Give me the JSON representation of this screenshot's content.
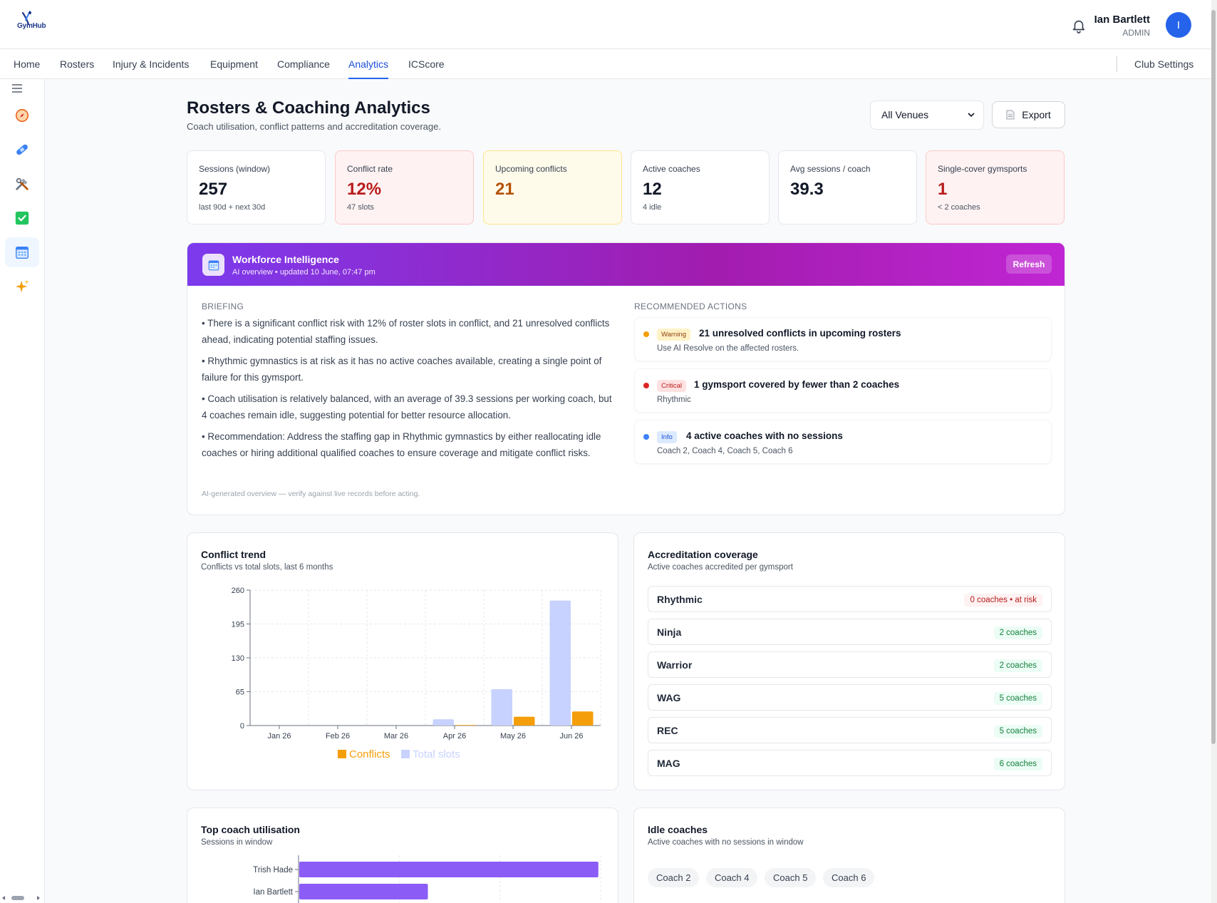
{
  "app": {
    "logo_text": "GymHub"
  },
  "user": {
    "name": "Ian Bartlett",
    "role": "ADMIN",
    "initial": "I"
  },
  "nav": {
    "items": [
      {
        "label": "Home"
      },
      {
        "label": "Rosters"
      },
      {
        "label": "Injury & Incidents"
      },
      {
        "label": "Equipment"
      },
      {
        "label": "Compliance"
      },
      {
        "label": "Analytics",
        "active": true
      },
      {
        "label": "ICScore"
      }
    ],
    "settings_label": "Club Settings"
  },
  "sidebar_icons": [
    "menu-icon",
    "compass-icon",
    "bandage-icon",
    "tools-icon",
    "checkbox-icon",
    "calendar-icon",
    "sparkle-icon"
  ],
  "page": {
    "title": "Rosters & Coaching Analytics",
    "subtitle": "Coach utilisation, conflict patterns and accreditation coverage.",
    "venue_selected": "All Venues",
    "export_label": "Export"
  },
  "kpis": [
    {
      "label": "Sessions (window)",
      "value": "257",
      "note": "last 90d + next 30d",
      "tone": "neutral"
    },
    {
      "label": "Conflict rate",
      "value": "12%",
      "note": "47 slots",
      "tone": "red"
    },
    {
      "label": "Upcoming conflicts",
      "value": "21",
      "note": "",
      "tone": "yellow"
    },
    {
      "label": "Active coaches",
      "value": "12",
      "note": "4 idle",
      "tone": "neutral"
    },
    {
      "label": "Avg sessions / coach",
      "value": "39.3",
      "note": "",
      "tone": "neutral"
    },
    {
      "label": "Single-cover gymsports",
      "value": "1",
      "note": "< 2 coaches",
      "tone": "red"
    }
  ],
  "ai": {
    "title": "Workforce Intelligence",
    "subtitle": "AI overview • updated 10 June, 07:47 pm",
    "refresh_label": "Refresh",
    "briefing_label": "BRIEFING",
    "briefing": [
      "• There is a significant conflict risk with 12% of roster slots in conflict, and 21 unresolved conflicts ahead, indicating potential staffing issues.",
      "• Rhythmic gymnastics is at risk as it has no active coaches available, creating a single point of failure for this gymsport.",
      "• Coach utilisation is relatively balanced, with an average of 39.3 sessions per working coach, but 4 coaches remain idle, suggesting potential for better resource allocation.",
      "• Recommendation: Address the staffing gap in Rhythmic gymnastics by either reallocating idle coaches or hiring additional qualified coaches to ensure coverage and mitigate conflict risks."
    ],
    "footer": "AI-generated overview — verify against live records before acting.",
    "actions_label": "RECOMMENDED ACTIONS",
    "actions": [
      {
        "tag": "Warning",
        "title": "21 unresolved conflicts in upcoming rosters",
        "desc": "Use AI Resolve on the affected rosters.",
        "dot": "#f59e0b",
        "tag_bg": "#fef3c7",
        "tag_fg": "#92400e"
      },
      {
        "tag": "Critical",
        "title": "1 gymsport covered by fewer than 2 coaches",
        "desc": "Rhythmic",
        "dot": "#dc2626",
        "tag_bg": "#fee2e2",
        "tag_fg": "#b91c1c"
      },
      {
        "tag": "Info",
        "title": "4 active coaches with no sessions",
        "desc": "Coach 2, Coach 4, Coach 5, Coach 6",
        "dot": "#3b82f6",
        "tag_bg": "#dbeafe",
        "tag_fg": "#1d4ed8"
      }
    ]
  },
  "conflict_card": {
    "title": "Conflict trend",
    "subtitle": "Conflicts vs total slots, last 6 months"
  },
  "accreditation": {
    "title": "Accreditation coverage",
    "subtitle": "Active coaches accredited per gymsport",
    "rows": [
      {
        "name": "Rhythmic",
        "badge": "0 coaches • at risk",
        "risk": true
      },
      {
        "name": "Ninja",
        "badge": "2 coaches",
        "risk": false
      },
      {
        "name": "Warrior",
        "badge": "2 coaches",
        "risk": false
      },
      {
        "name": "WAG",
        "badge": "5 coaches",
        "risk": false
      },
      {
        "name": "REC",
        "badge": "5 coaches",
        "risk": false
      },
      {
        "name": "MAG",
        "badge": "6 coaches",
        "risk": false
      }
    ]
  },
  "utilisation_card": {
    "title": "Top coach utilisation",
    "subtitle": "Sessions in window"
  },
  "idle": {
    "title": "Idle coaches",
    "subtitle": "Active coaches with no sessions in window",
    "chips": [
      "Coach 2",
      "Coach 4",
      "Coach 5",
      "Coach 6"
    ]
  },
  "chart_data": [
    {
      "type": "bar",
      "categories": [
        "Jan 26",
        "Feb 26",
        "Mar 26",
        "Apr 26",
        "May 26",
        "Jun 26"
      ],
      "series": [
        {
          "name": "Conflicts",
          "values": [
            0,
            0,
            0,
            1,
            17,
            27
          ],
          "color": "#f59e0b"
        },
        {
          "name": "Total slots",
          "values": [
            0,
            0,
            0,
            12,
            70,
            240
          ],
          "color": "#c7d2fe"
        }
      ],
      "yticks": [
        0,
        65,
        130,
        195,
        260
      ],
      "ylim": [
        0,
        260
      ],
      "grid": true,
      "legend": "bottom"
    },
    {
      "type": "bar",
      "orientation": "horizontal",
      "categories": [
        "Trish Hade",
        "Ian Bartlett"
      ],
      "values": [
        100,
        43
      ],
      "color": "#8b5cf6",
      "grid": true
    }
  ]
}
